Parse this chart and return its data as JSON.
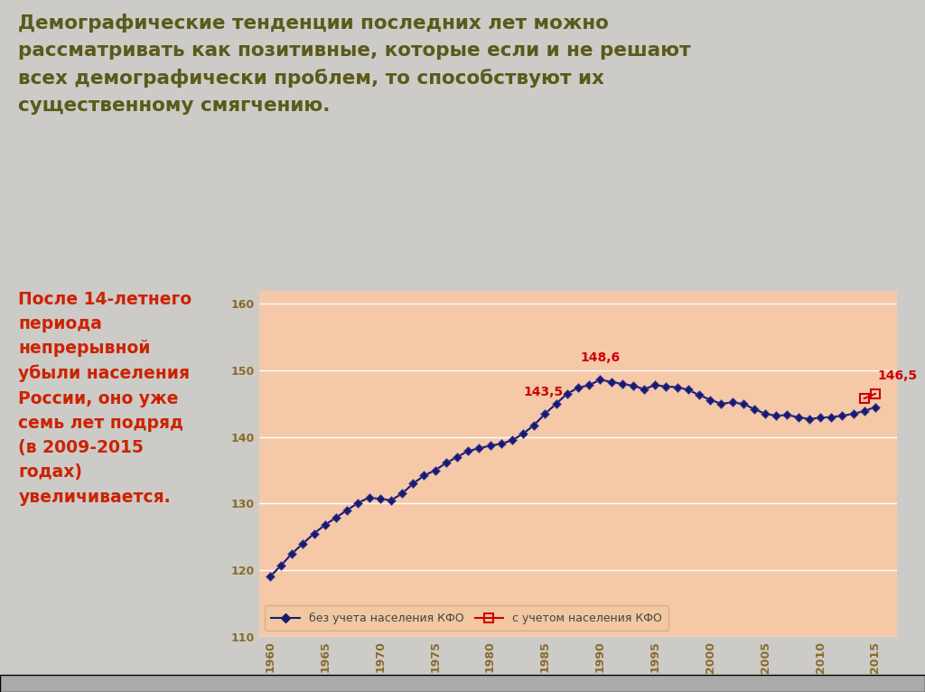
{
  "bg_color": "#cccbc7",
  "chart_bg_color": "#f5c8a8",
  "title_text": "Демографические тенденции последних лет можно\nрассматривать как позитивные, которые если и не решают\nвсех демографически проблем, то способствуют их\nсущественному смягчению.",
  "title_color": "#5a5a1a",
  "left_text": "После 14-летнего\nпериода\nнепрерывной\nубыли населения\nРоссии, оно уже\nсемь лет подряд\n(в 2009-2015\nгодах)\nувеличивается.",
  "left_text_color": "#cc2200",
  "years_main": [
    1960,
    1961,
    1962,
    1963,
    1964,
    1965,
    1966,
    1967,
    1968,
    1969,
    1970,
    1971,
    1972,
    1973,
    1974,
    1975,
    1976,
    1977,
    1978,
    1979,
    1980,
    1981,
    1982,
    1983,
    1984,
    1985,
    1986,
    1987,
    1988,
    1989,
    1990,
    1991,
    1992,
    1993,
    1994,
    1995,
    1996,
    1997,
    1998,
    1999,
    2000,
    2001,
    2002,
    2003,
    2004,
    2005,
    2006,
    2007,
    2008,
    2009,
    2010,
    2011,
    2012,
    2013,
    2014,
    2015
  ],
  "values_main": [
    119.0,
    120.7,
    122.5,
    124.0,
    125.5,
    126.8,
    127.9,
    129.0,
    130.1,
    130.9,
    130.7,
    130.5,
    131.5,
    133.0,
    134.2,
    135.0,
    136.1,
    137.0,
    137.9,
    138.3,
    138.7,
    139.0,
    139.5,
    140.5,
    141.8,
    143.5,
    145.0,
    146.5,
    147.4,
    147.8,
    148.6,
    148.3,
    148.0,
    147.7,
    147.2,
    147.8,
    147.6,
    147.5,
    147.1,
    146.3,
    145.6,
    145.0,
    145.2,
    145.0,
    144.2,
    143.5,
    143.2,
    143.3,
    143.0,
    142.7,
    142.9,
    143.0,
    143.2,
    143.5,
    143.9,
    144.5
  ],
  "years_kfo": [
    2014,
    2015
  ],
  "values_kfo": [
    145.8,
    146.5
  ],
  "line_color": "#1a1a6e",
  "kfo_color": "#cc0000",
  "annotation_color": "#cc0000",
  "legend_line_label": "без учета населения КФО",
  "legend_kfo_label": "с учетом населения КФО",
  "ylim": [
    110,
    162
  ],
  "yticks": [
    110,
    120,
    130,
    140,
    150,
    160
  ],
  "xticks": [
    1960,
    1965,
    1970,
    1975,
    1980,
    1985,
    1990,
    1995,
    2000,
    2005,
    2010,
    2015
  ]
}
